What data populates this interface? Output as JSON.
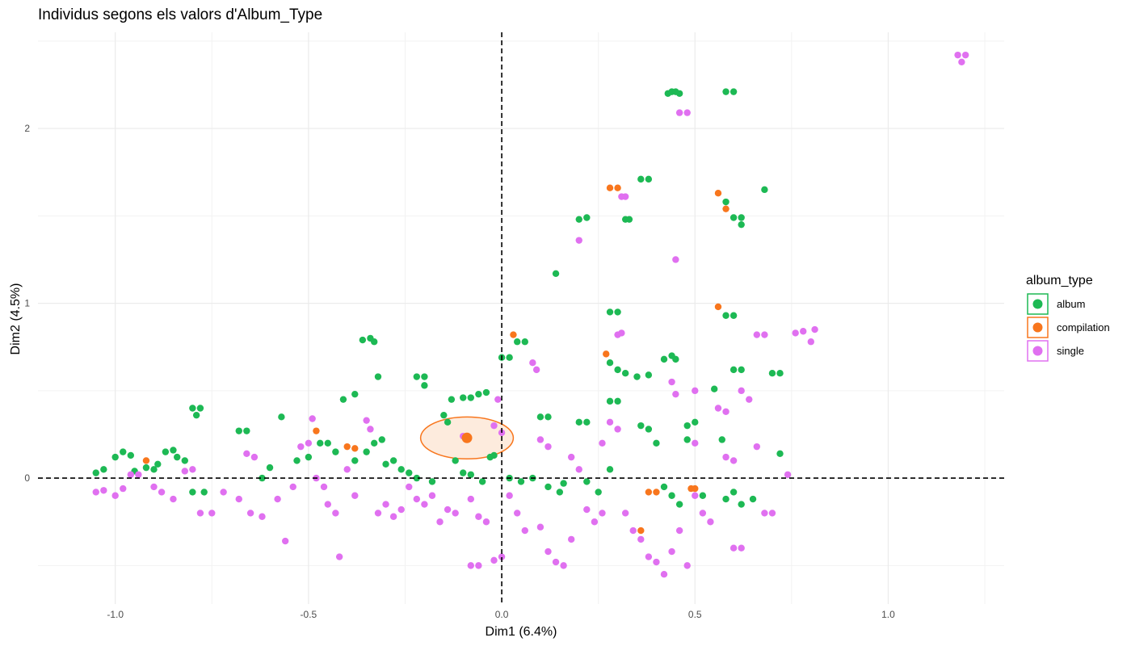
{
  "chart_data": {
    "type": "scatter",
    "title": "Individus segons els valors d'Album_Type",
    "xlabel": "Dim1 (6.4%)",
    "ylabel": "Dim2 (4.5%)",
    "xlim": [
      -1.2,
      1.3
    ],
    "ylim": [
      -0.72,
      2.55
    ],
    "x_ticks": [
      -1.0,
      -0.5,
      0.0,
      0.5,
      1.0
    ],
    "x_tick_labels": [
      "-1.0",
      "-0.5",
      "0.0",
      "0.5",
      "1.0"
    ],
    "y_ticks": [
      0,
      1,
      2
    ],
    "y_tick_labels": [
      "0",
      "1",
      "2"
    ],
    "grid": true,
    "reference_lines": {
      "x": 0,
      "y": 0,
      "style": "dashed"
    },
    "legend": {
      "title": "album_type",
      "placement": "right",
      "entries": [
        "album",
        "compilation",
        "single"
      ]
    },
    "series": [
      {
        "name": "album",
        "color": "#1DB954",
        "points": [
          [
            -1.05,
            0.03
          ],
          [
            -1.03,
            0.05
          ],
          [
            -1.0,
            0.12
          ],
          [
            -0.98,
            0.15
          ],
          [
            -0.96,
            0.13
          ],
          [
            -0.95,
            0.04
          ],
          [
            -0.92,
            0.06
          ],
          [
            -0.9,
            0.05
          ],
          [
            -0.89,
            0.08
          ],
          [
            -0.87,
            0.15
          ],
          [
            -0.85,
            0.16
          ],
          [
            -0.84,
            0.12
          ],
          [
            -0.82,
            0.1
          ],
          [
            -0.8,
            0.4
          ],
          [
            -0.78,
            0.4
          ],
          [
            -0.79,
            0.36
          ],
          [
            -0.8,
            -0.08
          ],
          [
            -0.77,
            -0.08
          ],
          [
            -0.68,
            0.27
          ],
          [
            -0.66,
            0.27
          ],
          [
            -0.62,
            0.0
          ],
          [
            -0.6,
            0.06
          ],
          [
            -0.57,
            0.35
          ],
          [
            -0.53,
            0.1
          ],
          [
            -0.5,
            0.12
          ],
          [
            -0.47,
            0.2
          ],
          [
            -0.45,
            0.2
          ],
          [
            -0.43,
            0.15
          ],
          [
            -0.41,
            0.45
          ],
          [
            -0.38,
            0.48
          ],
          [
            -0.36,
            0.79
          ],
          [
            -0.34,
            0.8
          ],
          [
            -0.33,
            0.78
          ],
          [
            -0.32,
            0.58
          ],
          [
            -0.38,
            0.1
          ],
          [
            -0.35,
            0.15
          ],
          [
            -0.33,
            0.2
          ],
          [
            -0.31,
            0.22
          ],
          [
            -0.3,
            0.08
          ],
          [
            -0.28,
            0.1
          ],
          [
            -0.26,
            0.05
          ],
          [
            -0.24,
            0.03
          ],
          [
            -0.22,
            0.58
          ],
          [
            -0.2,
            0.58
          ],
          [
            -0.2,
            0.53
          ],
          [
            -0.22,
            0.0
          ],
          [
            -0.18,
            -0.02
          ],
          [
            -0.15,
            0.36
          ],
          [
            -0.13,
            0.45
          ],
          [
            -0.1,
            0.46
          ],
          [
            -0.08,
            0.46
          ],
          [
            -0.14,
            0.32
          ],
          [
            -0.12,
            0.1
          ],
          [
            -0.1,
            0.03
          ],
          [
            -0.08,
            0.02
          ],
          [
            -0.05,
            -0.02
          ],
          [
            -0.06,
            0.48
          ],
          [
            -0.04,
            0.49
          ],
          [
            -0.03,
            0.12
          ],
          [
            -0.02,
            0.13
          ],
          [
            0.0,
            0.69
          ],
          [
            0.02,
            0.69
          ],
          [
            0.04,
            0.78
          ],
          [
            0.06,
            0.78
          ],
          [
            0.02,
            0.0
          ],
          [
            0.05,
            -0.02
          ],
          [
            0.08,
            0.0
          ],
          [
            0.1,
            0.35
          ],
          [
            0.12,
            0.35
          ],
          [
            0.14,
            1.17
          ],
          [
            0.12,
            -0.05
          ],
          [
            0.15,
            -0.08
          ],
          [
            0.16,
            -0.03
          ],
          [
            0.2,
            1.48
          ],
          [
            0.22,
            1.49
          ],
          [
            0.2,
            0.32
          ],
          [
            0.22,
            0.32
          ],
          [
            0.22,
            -0.02
          ],
          [
            0.25,
            -0.08
          ],
          [
            0.28,
            0.05
          ],
          [
            0.28,
            0.44
          ],
          [
            0.3,
            0.44
          ],
          [
            0.28,
            0.66
          ],
          [
            0.3,
            0.62
          ],
          [
            0.32,
            0.6
          ],
          [
            0.28,
            0.95
          ],
          [
            0.3,
            0.95
          ],
          [
            0.32,
            1.48
          ],
          [
            0.33,
            1.48
          ],
          [
            0.36,
            1.71
          ],
          [
            0.38,
            1.71
          ],
          [
            0.35,
            0.58
          ],
          [
            0.38,
            0.59
          ],
          [
            0.36,
            0.3
          ],
          [
            0.38,
            0.28
          ],
          [
            0.4,
            0.2
          ],
          [
            0.42,
            0.68
          ],
          [
            0.44,
            0.7
          ],
          [
            0.45,
            0.68
          ],
          [
            0.43,
            2.2
          ],
          [
            0.44,
            2.21
          ],
          [
            0.45,
            2.21
          ],
          [
            0.46,
            2.2
          ],
          [
            0.42,
            -0.05
          ],
          [
            0.44,
            -0.1
          ],
          [
            0.46,
            -0.15
          ],
          [
            0.48,
            0.3
          ],
          [
            0.5,
            0.32
          ],
          [
            0.48,
            0.22
          ],
          [
            0.52,
            -0.1
          ],
          [
            0.55,
            0.51
          ],
          [
            0.57,
            0.22
          ],
          [
            0.58,
            1.58
          ],
          [
            0.6,
            1.49
          ],
          [
            0.62,
            1.45
          ],
          [
            0.62,
            1.49
          ],
          [
            0.58,
            2.21
          ],
          [
            0.6,
            2.21
          ],
          [
            0.58,
            0.93
          ],
          [
            0.6,
            0.93
          ],
          [
            0.6,
            0.62
          ],
          [
            0.62,
            0.62
          ],
          [
            0.58,
            -0.12
          ],
          [
            0.6,
            -0.08
          ],
          [
            0.62,
            -0.15
          ],
          [
            0.65,
            -0.12
          ],
          [
            0.68,
            1.65
          ],
          [
            0.7,
            0.6
          ],
          [
            0.72,
            0.6
          ],
          [
            0.72,
            0.14
          ]
        ]
      },
      {
        "name": "compilation",
        "color": "#F8761D",
        "points": [
          [
            -0.92,
            0.1
          ],
          [
            -0.48,
            0.27
          ],
          [
            -0.4,
            0.18
          ],
          [
            -0.38,
            0.17
          ],
          [
            0.03,
            0.82
          ],
          [
            0.27,
            0.71
          ],
          [
            0.28,
            1.66
          ],
          [
            0.3,
            1.66
          ],
          [
            0.36,
            -0.3
          ],
          [
            0.38,
            -0.08
          ],
          [
            0.4,
            -0.08
          ],
          [
            0.49,
            -0.06
          ],
          [
            0.5,
            -0.06
          ],
          [
            0.56,
            1.63
          ],
          [
            0.56,
            0.98
          ],
          [
            0.58,
            1.54
          ]
        ],
        "centroid": [
          -0.09,
          0.23
        ]
      },
      {
        "name": "single",
        "color": "#E070F0",
        "points": [
          [
            -1.05,
            -0.08
          ],
          [
            -1.03,
            -0.07
          ],
          [
            -1.0,
            -0.1
          ],
          [
            -0.98,
            -0.06
          ],
          [
            -0.96,
            0.02
          ],
          [
            -0.94,
            0.02
          ],
          [
            -0.9,
            -0.05
          ],
          [
            -0.88,
            -0.08
          ],
          [
            -0.85,
            -0.12
          ],
          [
            -0.82,
            0.04
          ],
          [
            -0.8,
            0.05
          ],
          [
            -0.78,
            -0.2
          ],
          [
            -0.75,
            -0.2
          ],
          [
            -0.72,
            -0.08
          ],
          [
            -0.68,
            -0.12
          ],
          [
            -0.66,
            0.14
          ],
          [
            -0.64,
            0.12
          ],
          [
            -0.65,
            -0.2
          ],
          [
            -0.62,
            -0.22
          ],
          [
            -0.58,
            -0.12
          ],
          [
            -0.56,
            -0.36
          ],
          [
            -0.54,
            -0.05
          ],
          [
            -0.52,
            0.18
          ],
          [
            -0.5,
            0.2
          ],
          [
            -0.49,
            0.34
          ],
          [
            -0.48,
            0.0
          ],
          [
            -0.46,
            -0.05
          ],
          [
            -0.45,
            -0.15
          ],
          [
            -0.43,
            -0.2
          ],
          [
            -0.42,
            -0.45
          ],
          [
            -0.4,
            0.05
          ],
          [
            -0.38,
            -0.1
          ],
          [
            -0.35,
            0.33
          ],
          [
            -0.34,
            0.28
          ],
          [
            -0.32,
            -0.2
          ],
          [
            -0.3,
            -0.15
          ],
          [
            -0.28,
            -0.22
          ],
          [
            -0.26,
            -0.18
          ],
          [
            -0.24,
            -0.05
          ],
          [
            -0.22,
            -0.12
          ],
          [
            -0.2,
            -0.15
          ],
          [
            -0.18,
            -0.1
          ],
          [
            -0.16,
            -0.25
          ],
          [
            -0.14,
            -0.18
          ],
          [
            -0.12,
            -0.2
          ],
          [
            -0.1,
            0.24
          ],
          [
            -0.08,
            -0.12
          ],
          [
            -0.06,
            -0.22
          ],
          [
            -0.04,
            -0.25
          ],
          [
            -0.02,
            0.3
          ],
          [
            0.0,
            0.26
          ],
          [
            -0.01,
            0.45
          ],
          [
            -0.08,
            -0.5
          ],
          [
            -0.06,
            -0.5
          ],
          [
            -0.02,
            -0.47
          ],
          [
            0.0,
            -0.45
          ],
          [
            0.02,
            -0.1
          ],
          [
            0.04,
            -0.2
          ],
          [
            0.06,
            -0.3
          ],
          [
            0.08,
            0.66
          ],
          [
            0.09,
            0.62
          ],
          [
            0.1,
            0.22
          ],
          [
            0.12,
            0.18
          ],
          [
            0.1,
            -0.28
          ],
          [
            0.12,
            -0.42
          ],
          [
            0.14,
            -0.48
          ],
          [
            0.16,
            -0.5
          ],
          [
            0.18,
            -0.35
          ],
          [
            0.18,
            0.12
          ],
          [
            0.2,
            1.36
          ],
          [
            0.2,
            0.05
          ],
          [
            0.22,
            -0.18
          ],
          [
            0.24,
            -0.25
          ],
          [
            0.26,
            -0.2
          ],
          [
            0.26,
            0.2
          ],
          [
            0.28,
            0.32
          ],
          [
            0.3,
            0.28
          ],
          [
            0.3,
            0.82
          ],
          [
            0.31,
            0.83
          ],
          [
            0.31,
            1.61
          ],
          [
            0.32,
            1.61
          ],
          [
            0.32,
            -0.2
          ],
          [
            0.34,
            -0.3
          ],
          [
            0.36,
            -0.35
          ],
          [
            0.38,
            -0.45
          ],
          [
            0.4,
            -0.48
          ],
          [
            0.42,
            -0.55
          ],
          [
            0.44,
            -0.42
          ],
          [
            0.45,
            1.25
          ],
          [
            0.44,
            0.55
          ],
          [
            0.45,
            0.48
          ],
          [
            0.46,
            2.09
          ],
          [
            0.48,
            2.09
          ],
          [
            0.46,
            -0.3
          ],
          [
            0.48,
            -0.5
          ],
          [
            0.5,
            0.5
          ],
          [
            0.5,
            0.2
          ],
          [
            0.5,
            -0.1
          ],
          [
            0.52,
            -0.2
          ],
          [
            0.54,
            -0.25
          ],
          [
            0.56,
            0.4
          ],
          [
            0.58,
            0.38
          ],
          [
            0.58,
            0.12
          ],
          [
            0.6,
            0.1
          ],
          [
            0.6,
            -0.4
          ],
          [
            0.62,
            -0.4
          ],
          [
            0.62,
            0.5
          ],
          [
            0.64,
            0.45
          ],
          [
            0.66,
            0.18
          ],
          [
            0.66,
            0.82
          ],
          [
            0.68,
            0.82
          ],
          [
            0.68,
            -0.2
          ],
          [
            0.7,
            -0.2
          ],
          [
            0.74,
            0.02
          ],
          [
            0.76,
            0.83
          ],
          [
            0.78,
            0.84
          ],
          [
            0.8,
            0.78
          ],
          [
            0.81,
            0.85
          ],
          [
            1.18,
            2.42
          ],
          [
            1.19,
            2.38
          ],
          [
            1.2,
            2.42
          ]
        ]
      }
    ],
    "confidence_ellipse": {
      "series": "compilation",
      "center": [
        -0.09,
        0.23
      ],
      "semi_axis_x": 0.12,
      "semi_axis_y": 0.12,
      "fill": "#FDEBDD",
      "stroke": "#F8761D"
    }
  }
}
